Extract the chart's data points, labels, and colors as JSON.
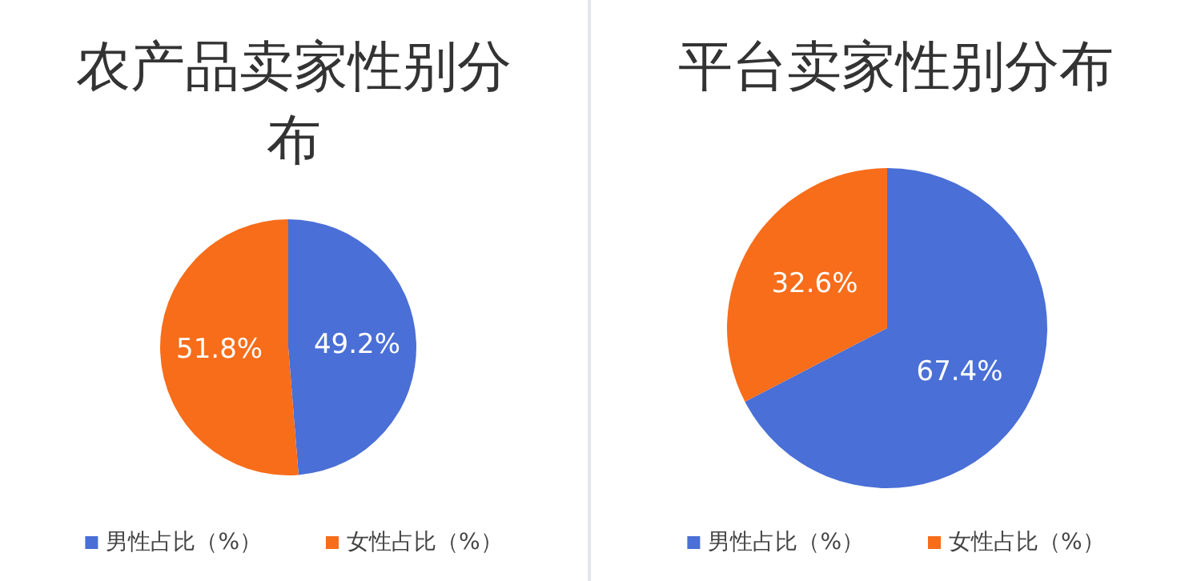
{
  "chart_data": [
    {
      "type": "pie",
      "title": "农产品卖家性别分布",
      "categories": [
        "男性占比（%）",
        "女性占比（%）"
      ],
      "values": [
        49.2,
        51.8
      ],
      "value_labels": [
        "49.2%",
        "51.8%"
      ],
      "colors": [
        "#4a6fd6",
        "#f76d1a"
      ],
      "legend": "bottom"
    },
    {
      "type": "pie",
      "title": "平台卖家性别分布",
      "categories": [
        "男性占比（%）",
        "女性占比（%）"
      ],
      "values": [
        67.4,
        32.6
      ],
      "value_labels": [
        "67.4%",
        "32.6%"
      ],
      "colors": [
        "#4a6fd6",
        "#f76d1a"
      ],
      "legend": "bottom"
    }
  ]
}
